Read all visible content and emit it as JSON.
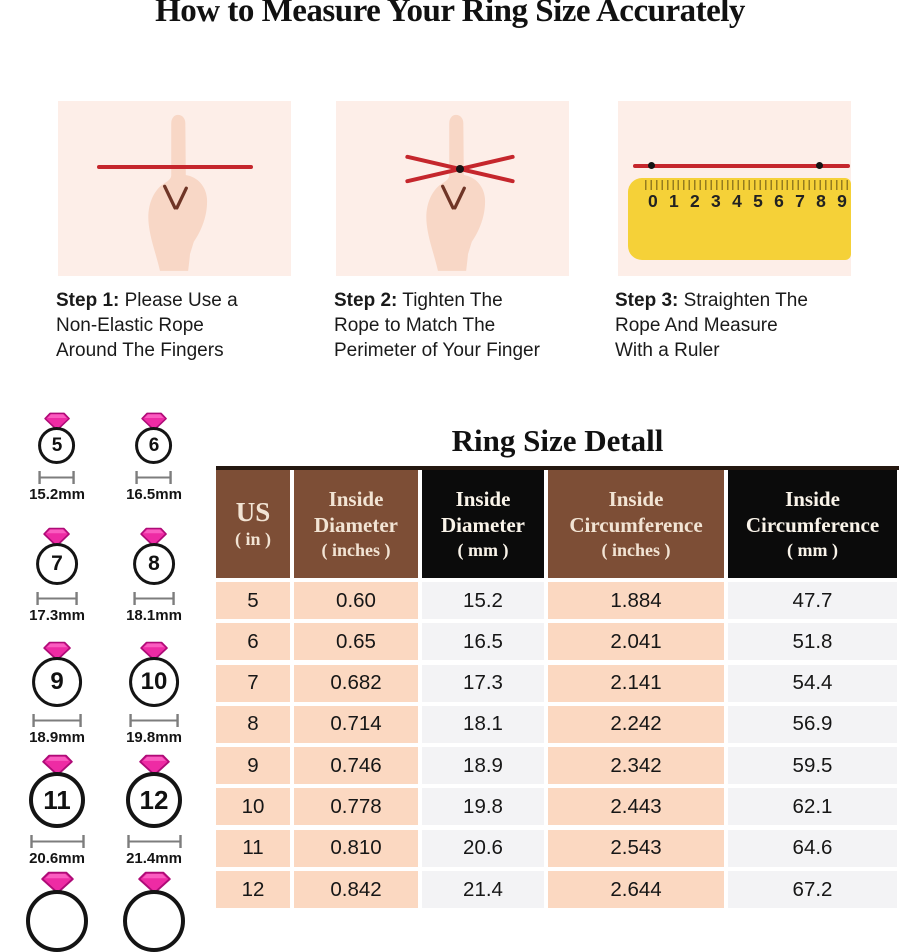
{
  "title": "How to Measure Your Ring Size Accurately",
  "steps": [
    {
      "label": "Step 1:",
      "lines": [
        "Please Use a",
        "Non-Elastic Rope",
        "Around The Fingers"
      ],
      "illustration": "hand-with-straight-rope"
    },
    {
      "label": "Step 2:",
      "lines": [
        "Tighten The",
        "Rope to Match The",
        "Perimeter of Your Finger"
      ],
      "illustration": "hand-with-tightened-rope"
    },
    {
      "label": "Step 3:",
      "lines": [
        "Straighten The",
        "Rope And Measure",
        "With a Ruler"
      ],
      "illustration": "ruler-measuring-rope"
    }
  ],
  "ruler_numbers": [
    "0",
    "1",
    "2",
    "3",
    "4",
    "5",
    "6",
    "7",
    "8",
    "9"
  ],
  "ring_gallery": [
    {
      "size": "5",
      "diameter": "15.2mm"
    },
    {
      "size": "6",
      "diameter": "16.5mm"
    },
    {
      "size": "7",
      "diameter": "17.3mm"
    },
    {
      "size": "8",
      "diameter": "18.1mm"
    },
    {
      "size": "9",
      "diameter": "18.9mm"
    },
    {
      "size": "10",
      "diameter": "19.8mm"
    },
    {
      "size": "11",
      "diameter": "20.6mm"
    },
    {
      "size": "12",
      "diameter": "21.4mm"
    }
  ],
  "ring_gallery_partial_count": 2,
  "size_chart": {
    "title": "Ring Size Detall",
    "headers": [
      {
        "lines": [
          "US",
          "( in )"
        ],
        "theme": "brown"
      },
      {
        "lines": [
          "Inside",
          "Diameter",
          "( inches )"
        ],
        "theme": "brown"
      },
      {
        "lines": [
          "Inside",
          "Diameter",
          "( mm )"
        ],
        "theme": "black"
      },
      {
        "lines": [
          "Inside",
          "Circumference",
          "( inches )"
        ],
        "theme": "brown"
      },
      {
        "lines": [
          "Inside",
          "Circumference",
          "( mm )"
        ],
        "theme": "black"
      }
    ],
    "rows": [
      [
        "5",
        "0.60",
        "15.2",
        "1.884",
        "47.7"
      ],
      [
        "6",
        "0.65",
        "16.5",
        "2.041",
        "51.8"
      ],
      [
        "7",
        "0.682",
        "17.3",
        "2.141",
        "54.4"
      ],
      [
        "8",
        "0.714",
        "18.1",
        "2.242",
        "56.9"
      ],
      [
        "9",
        "0.746",
        "18.9",
        "2.342",
        "59.5"
      ],
      [
        "10",
        "0.778",
        "19.8",
        "2.443",
        "62.1"
      ],
      [
        "11",
        "0.810",
        "20.6",
        "2.543",
        "64.6"
      ],
      [
        "12",
        "0.842",
        "21.4",
        "2.644",
        "67.2"
      ]
    ]
  },
  "colors": {
    "rope_red": "#c5262c",
    "ruler_yellow": "#f5d138",
    "header_brown": "#7d4e36",
    "header_black": "#0b0b0b",
    "cell_peach": "#fbd8c1",
    "cell_gray": "#f3f3f5",
    "diamond_pink": "#ee2ba4",
    "panel_pink": "#fdeee8"
  }
}
